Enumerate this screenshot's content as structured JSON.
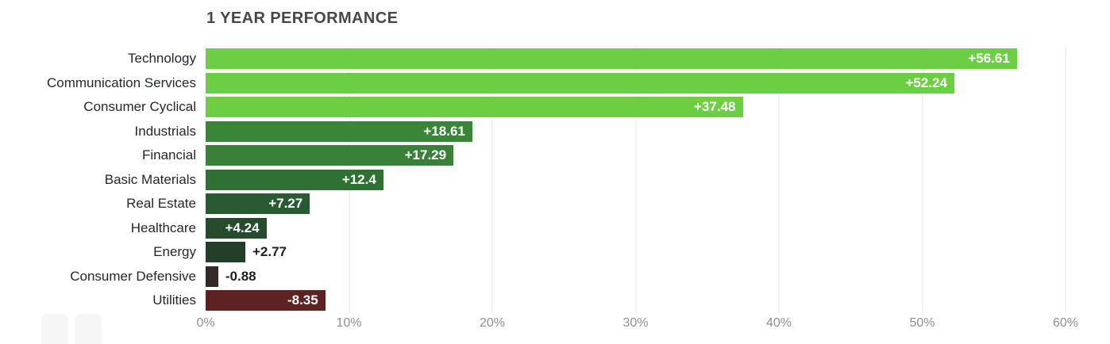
{
  "chart_data": {
    "type": "bar",
    "orientation": "horizontal",
    "title": "1 YEAR PERFORMANCE",
    "xlabel": "",
    "ylabel": "",
    "xlim": [
      0,
      60
    ],
    "grid": true,
    "x_ticks": [
      {
        "value": 0,
        "label": "0%"
      },
      {
        "value": 10,
        "label": "10%"
      },
      {
        "value": 20,
        "label": "20%"
      },
      {
        "value": 30,
        "label": "30%"
      },
      {
        "value": 40,
        "label": "40%"
      },
      {
        "value": 50,
        "label": "50%"
      },
      {
        "value": 60,
        "label": "60%"
      }
    ],
    "rows": [
      {
        "category": "Technology",
        "value": 56.61,
        "label": "+56.61",
        "color": "#6cce43",
        "label_inside": true
      },
      {
        "category": "Communication Services",
        "value": 52.24,
        "label": "+52.24",
        "color": "#6cce43",
        "label_inside": true
      },
      {
        "category": "Consumer Cyclical",
        "value": 37.48,
        "label": "+37.48",
        "color": "#6cce43",
        "label_inside": true
      },
      {
        "category": "Industrials",
        "value": 18.61,
        "label": "+18.61",
        "color": "#3a8639",
        "label_inside": true
      },
      {
        "category": "Financial",
        "value": 17.29,
        "label": "+17.29",
        "color": "#398138",
        "label_inside": true
      },
      {
        "category": "Basic Materials",
        "value": 12.4,
        "label": "+12.4",
        "color": "#2f7034",
        "label_inside": true
      },
      {
        "category": "Real Estate",
        "value": 7.27,
        "label": "+7.27",
        "color": "#295a31",
        "label_inside": true
      },
      {
        "category": "Healthcare",
        "value": 4.24,
        "label": "+4.24",
        "color": "#254a2c",
        "label_inside": true
      },
      {
        "category": "Energy",
        "value": 2.77,
        "label": "+2.77",
        "color": "#223f2a",
        "label_inside": false
      },
      {
        "category": "Consumer Defensive",
        "value": -0.88,
        "label": "-0.88",
        "color": "#332a28",
        "label_inside": false
      },
      {
        "category": "Utilities",
        "value": -8.35,
        "label": "-8.35",
        "color": "#5e2121",
        "label_inside": true
      }
    ],
    "colors": {
      "background": "#ffffff",
      "gridline": "#e6e6e6",
      "axis_text": "#8f8f8f",
      "category_text": "#23262b",
      "title_text": "#474747",
      "value_text_inside": "#ffffff",
      "value_text_outside": "#1f1f1f"
    },
    "legend": false
  }
}
